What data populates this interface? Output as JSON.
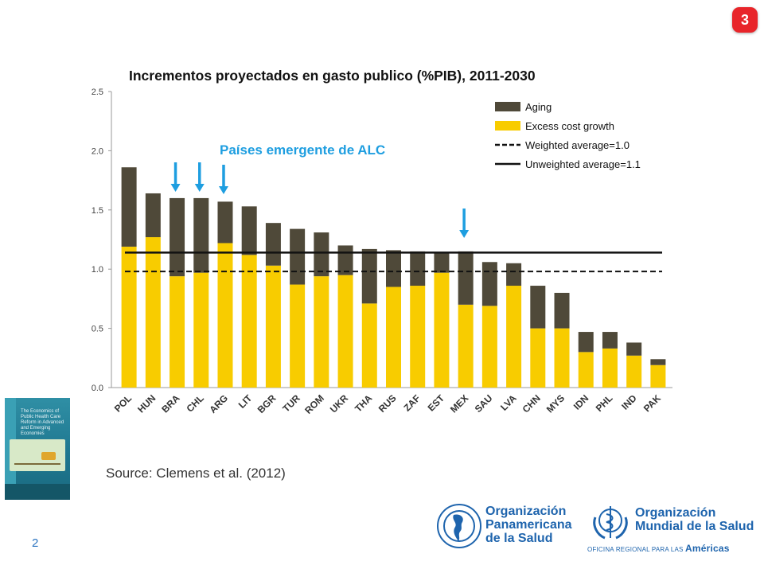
{
  "slide_badge": "3",
  "page_number": "2",
  "chart_data": {
    "type": "bar",
    "stacked": true,
    "title": "Incrementos proyectados en gasto publico (%PIB), 2011-2030",
    "annotation": "Países emergente de ALC",
    "categories": [
      "POL",
      "HUN",
      "BRA",
      "CHL",
      "ARG",
      "LIT",
      "BGR",
      "TUR",
      "ROM",
      "UKR",
      "THA",
      "RUS",
      "ZAF",
      "EST",
      "MEX",
      "SAU",
      "LVA",
      "CHN",
      "MYS",
      "IDN",
      "PHL",
      "IND",
      "PAK"
    ],
    "series": [
      {
        "name": "Excess cost growth",
        "color": "#f8cc00",
        "values": [
          1.19,
          1.27,
          0.94,
          0.97,
          1.22,
          1.12,
          1.03,
          0.87,
          0.94,
          0.95,
          0.71,
          0.85,
          0.86,
          0.97,
          0.7,
          0.69,
          0.86,
          0.5,
          0.5,
          0.3,
          0.33,
          0.27,
          0.19
        ]
      },
      {
        "name": "Aging",
        "color": "#4f4939",
        "values": [
          0.67,
          0.37,
          0.66,
          0.63,
          0.35,
          0.41,
          0.36,
          0.47,
          0.37,
          0.25,
          0.46,
          0.31,
          0.29,
          0.17,
          0.45,
          0.37,
          0.19,
          0.36,
          0.3,
          0.17,
          0.14,
          0.11,
          0.05
        ]
      }
    ],
    "reference_lines": [
      {
        "name": "Weighted average=1.0",
        "value": 0.98,
        "style": "dashed"
      },
      {
        "name": "Unweighted average=1.1",
        "value": 1.14,
        "style": "solid"
      }
    ],
    "highlighted": [
      "BRA",
      "CHL",
      "ARG",
      "MEX"
    ],
    "y_ticks": [
      "0.0",
      "0.5",
      "1.0",
      "1.5",
      "2.0",
      "2.5"
    ],
    "ylim": [
      0,
      2.5
    ],
    "legend_position": "top-right",
    "grid": false
  },
  "source": "Source: Clemens et al. (2012)",
  "book": {
    "title": "The Economics of Public Health Care Reform in Advanced and Emerging Economies"
  },
  "organizations": [
    {
      "name_lines": [
        "Organización",
        "Panamericana",
        "de la Salud"
      ]
    },
    {
      "name_lines": [
        "Organización",
        "Mundial de la Salud"
      ],
      "subtitle": "OFICINA REGIONAL PARA LAS",
      "region": "Américas"
    }
  ],
  "colors": {
    "accent_blue": "#1e9ee0",
    "badge_red": "#e8252a",
    "org_blue": "#1e64ad"
  }
}
